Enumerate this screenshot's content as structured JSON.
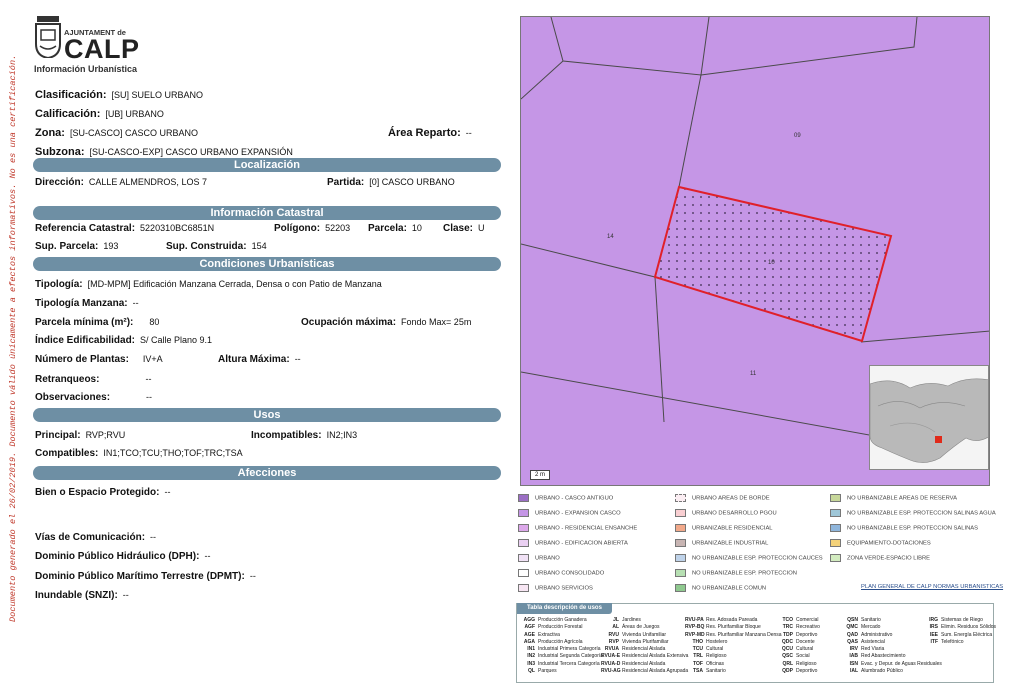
{
  "header": {
    "logo_ayuntament": "AJUNTAMENT de",
    "logo_calp": "CALP",
    "subtitle": "Información Urbanística"
  },
  "side_note": "Documento generado el 26/02/2019. Documento válido únicamente a efectos informativos. No es una certificación.",
  "clasificacion": {
    "label": "Clasificación:",
    "value": "[SU] SUELO URBANO"
  },
  "calificacion": {
    "label": "Calificación:",
    "value": "[UB] URBANO"
  },
  "zona": {
    "label": "Zona:",
    "value": "[SU-CASCO] CASCO URBANO"
  },
  "area_reparto": {
    "label": "Área Reparto:",
    "value": "--"
  },
  "subzona": {
    "label": "Subzona:",
    "value": "[SU-CASCO-EXP] CASCO URBANO EXPANSIÓN"
  },
  "sections": {
    "localizacion": "Localización",
    "catastral": "Información Catastral",
    "condiciones": "Condiciones Urbanísticas",
    "usos": "Usos",
    "afecciones": "Afecciones"
  },
  "localizacion": {
    "direccion_label": "Dirección:",
    "direccion_value": "CALLE ALMENDROS, LOS 7",
    "partida_label": "Partida:",
    "partida_value": "[0] CASCO URBANO"
  },
  "catastral": {
    "ref_label": "Referencia Catastral:",
    "ref_value": "5220310BC6851N",
    "poligono_label": "Polígono:",
    "poligono_value": "52203",
    "parcela_label": "Parcela:",
    "parcela_value": "10",
    "clase_label": "Clase:",
    "clase_value": "U",
    "sup_parcela_label": "Sup. Parcela:",
    "sup_parcela_value": "193",
    "sup_construida_label": "Sup. Construida:",
    "sup_construida_value": "154"
  },
  "condiciones": {
    "tipologia_label": "Tipología:",
    "tipologia_value": "[MD-MPM] Edificación Manzana Cerrada, Densa o con Patio de Manzana",
    "tipologia_manzana_label": "Tipología Manzana:",
    "tipologia_manzana_value": "--",
    "parcela_minima_label": "Parcela mínima (m²):",
    "parcela_minima_value": "80",
    "ocupacion_label": "Ocupación máxima:",
    "ocupacion_value": "Fondo Max= 25m",
    "indice_label": "Índice Edificabilidad:",
    "indice_value": "S/ Calle Plano 9.1",
    "plantas_label": "Número de Plantas:",
    "plantas_value": "IV+A",
    "altura_label": "Altura Máxima:",
    "altura_value": "--",
    "retranqueos_label": "Retranqueos:",
    "retranqueos_value": "--",
    "observaciones_label": "Observaciones:",
    "observaciones_value": "--"
  },
  "usos": {
    "principal_label": "Principal:",
    "principal_value": "RVP;RVU",
    "incompatibles_label": "Incompatibles:",
    "incompatibles_value": "IN2;IN3",
    "compatibles_label": "Compatibles:",
    "compatibles_value": "IN1;TCO;TCU;THO;TOF;TRC;TSA"
  },
  "afecciones": {
    "bien_label": "Bien o Espacio Protegido:",
    "bien_value": "--",
    "vias_label": "Vías de Comunicación:",
    "vias_value": "--",
    "dph_label": "Dominio Público Hidráulico (DPH):",
    "dph_value": "--",
    "dpmt_label": "Dominio Público Marítimo Terrestre (DPMT):",
    "dpmt_value": "--",
    "inundable_label": "Inundable (SNZI):",
    "inundable_value": "--"
  },
  "map": {
    "parcel_labels": [
      "09",
      "14",
      "10",
      "11"
    ],
    "scale_label": "2 m",
    "colors": {
      "expansion": "#c596e6",
      "border": "#4a4a4a",
      "selected": "#e0202a",
      "marker": "#e02a1a"
    }
  },
  "legend": {
    "items": [
      {
        "label": "URBANO - CASCO ANTIGUO",
        "color": "#9b6fc4"
      },
      {
        "label": "URBANO - EXPANSION CASCO",
        "color": "#c596e6"
      },
      {
        "label": "URBANO - RESIDENCIAL ENSANCHE",
        "color": "#dca8ea"
      },
      {
        "label": "URBANO - EDIFICACION ABIERTA",
        "color": "#ead0f2"
      },
      {
        "label": "URBANO",
        "color": "#f1e2f6"
      },
      {
        "label": "URBANO CONSOLIDADO",
        "color": "#ffffff"
      },
      {
        "label": "URBANO SERVICIOS",
        "color": "#f7e6f3"
      },
      {
        "label": "URBANO AREAS DE BORDE",
        "color": "#fbeef3"
      },
      {
        "label": "URBANO DESARROLLO PGOU",
        "color": "#f9cfd2"
      },
      {
        "label": "URBANIZABLE RESIDENCIAL",
        "color": "#f2a98a"
      },
      {
        "label": "URBANIZABLE INDUSTRIAL",
        "color": "#c8b5b3"
      },
      {
        "label": "NO URBANIZABLE ESP. PROTECCION CAUCES",
        "color": "#bfd3ea"
      },
      {
        "label": "NO URBANIZABLE ESP. PROTECCION",
        "color": "#b7e0b3"
      },
      {
        "label": "NO URBANIZABLE COMUN",
        "color": "#8fc98f"
      },
      {
        "label": "NO URBANIZABLE AREAS DE RESERVA",
        "color": "#c7d79a"
      },
      {
        "label": "NO URBANIZABLE ESP. PROTECCION SALINAS AGUA",
        "color": "#9fc7d8"
      },
      {
        "label": "NO URBANIZABLE ESP. PROTECCION SALINAS",
        "color": "#8fb6dc"
      },
      {
        "label": "EQUIPAMIENTO-DOTACIONES",
        "color": "#f4d27a"
      },
      {
        "label": "ZONA VERDE-ESPACIO LIBRE",
        "color": "#d3ecc0"
      }
    ],
    "link": "PLAN GENERAL DE CALP NORMAS URBANISTICAS"
  },
  "uses_table": {
    "title": "Tabla descripción de usos",
    "columns": [
      [
        [
          "AGG",
          "Producción Ganadera"
        ],
        [
          "AGF",
          "Producción Forestal"
        ],
        [
          "AGE",
          "Extractiva"
        ],
        [
          "AGA",
          "Producción Agrícola"
        ],
        [
          "IN1",
          "Industrial Primera Categoría"
        ],
        [
          "IN2",
          "Industrial Segunda Categoría"
        ],
        [
          "IN3",
          "Industrial Tercera Categoría"
        ],
        [
          "QL",
          "Parques"
        ]
      ],
      [
        [
          "JL",
          "Jardines"
        ],
        [
          "AL",
          "Áreas de Juegos"
        ],
        [
          "RVU",
          "Vivienda Unifamiliar"
        ],
        [
          "RVP",
          "Vivienda Plurifamiliar"
        ],
        [
          "RVUA",
          "Residencial Aislada"
        ],
        [
          "RVUA-E",
          "Residencial Aislada Extensiva"
        ],
        [
          "RVUA-D",
          "Residencial Aislada"
        ],
        [
          "RVU-AG",
          "Residencial Aislada Agrupada"
        ]
      ],
      [
        [
          "RVU-PA",
          "Res. Adosada Pareada"
        ],
        [
          "RVP-BQ",
          "Res. Plurifamiliar Bloque"
        ],
        [
          "RVP-MD",
          "Res. Plurifamiliar Manzana Densa"
        ],
        [
          "THO",
          "Hostelero"
        ],
        [
          "TCU",
          "Cultural"
        ],
        [
          "TRL",
          "Religioso"
        ],
        [
          "TOF",
          "Oficinas"
        ],
        [
          "TSA",
          "Sanitario"
        ]
      ],
      [
        [
          "TCO",
          "Comercial"
        ],
        [
          "TRC",
          "Recreativo"
        ],
        [
          "TDP",
          "Deportivo"
        ],
        [
          "QDC",
          "Docente"
        ],
        [
          "QCU",
          "Cultural"
        ],
        [
          "QSC",
          "Social"
        ],
        [
          "QRL",
          "Religioso"
        ],
        [
          "QDP",
          "Deportivo"
        ]
      ],
      [
        [
          "QSN",
          "Sanitario"
        ],
        [
          "QMC",
          "Mercado"
        ],
        [
          "QAD",
          "Administrativo"
        ],
        [
          "QAS",
          "Asistencial"
        ],
        [
          "IRV",
          "Red Viaria"
        ],
        [
          "IAB",
          "Red Abastecimiento"
        ],
        [
          "ISN",
          "Evac. y Depur. de Aguas Residuales"
        ],
        [
          "IAL",
          "Alumbrado Público"
        ]
      ],
      [
        [
          "IRG",
          "Sistemas de Riego"
        ],
        [
          "IRS",
          "Elimin. Residuos Sólidos"
        ],
        [
          "IEE",
          "Sum. Energía Eléctrica"
        ],
        [
          "ITF",
          "Telefónico"
        ]
      ]
    ]
  }
}
